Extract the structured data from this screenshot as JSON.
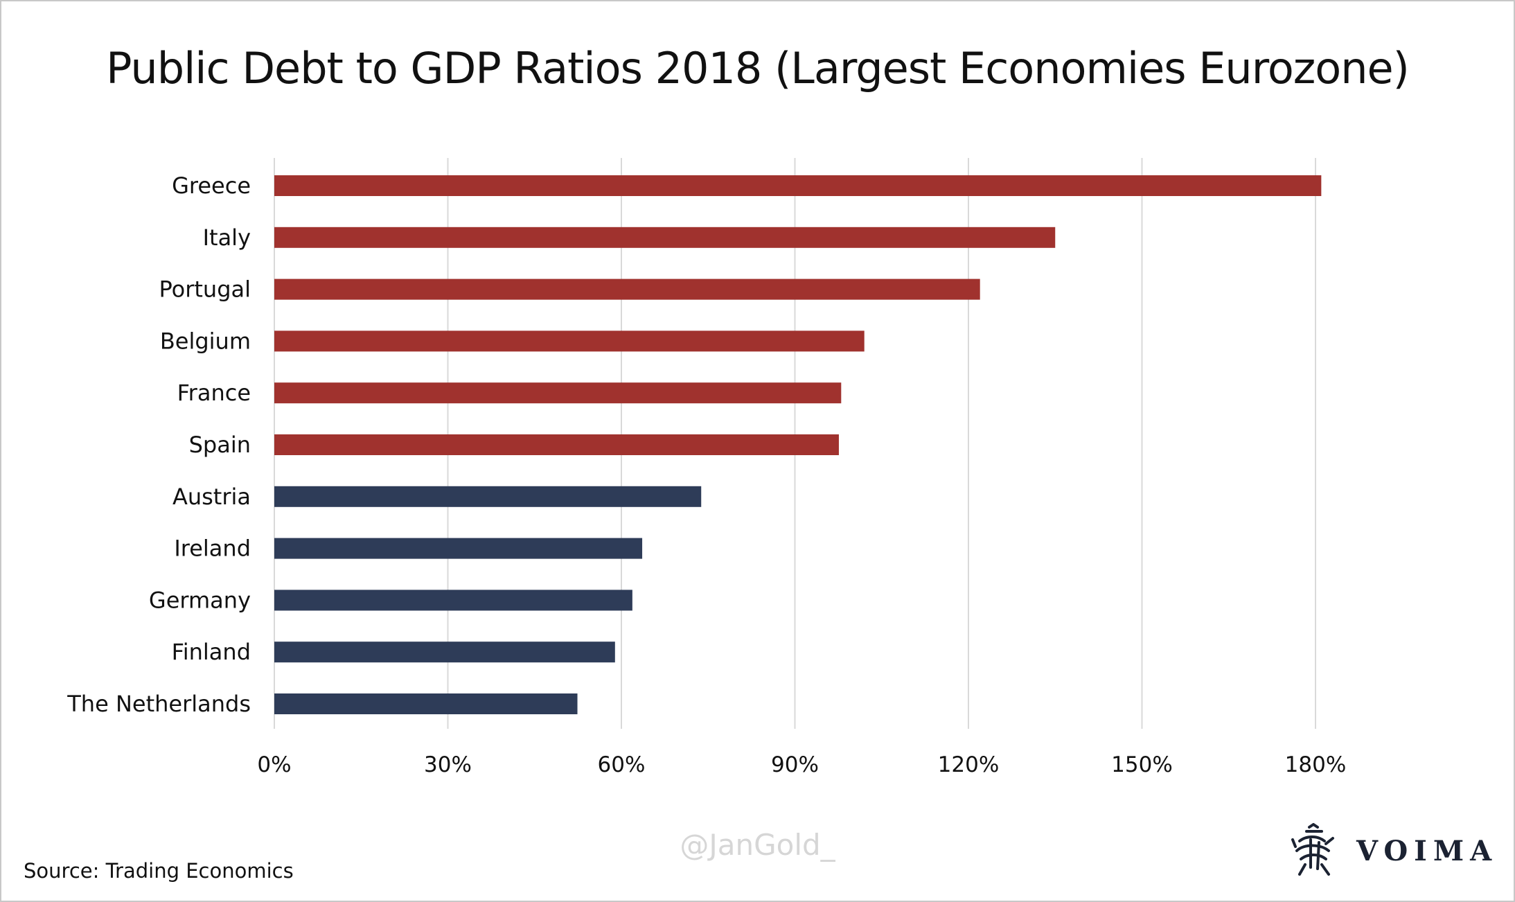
{
  "title": "Public Debt to GDP Ratios 2018 (Largest Economies Eurozone)",
  "source": "Source: Trading Economics",
  "watermark": "@JanGold_",
  "logo": {
    "text": "VOIMA",
    "icon": "griffin-crest-icon"
  },
  "colors": {
    "above_60": "#a0322e",
    "below_60": "#2e3c58",
    "grid": "#d9d9d9"
  },
  "chart_data": {
    "type": "bar",
    "orientation": "horizontal",
    "title": "Public Debt to GDP Ratios 2018 (Largest Economies Eurozone)",
    "categories": [
      "Greece",
      "Italy",
      "Portugal",
      "Belgium",
      "France",
      "Spain",
      "Austria",
      "Ireland",
      "Germany",
      "Finland",
      "The Netherlands"
    ],
    "values": [
      181,
      135,
      122,
      102,
      98,
      97.6,
      73.8,
      63.6,
      61.9,
      58.9,
      52.4
    ],
    "value_unit": "%",
    "bar_colors": [
      "#a0322e",
      "#a0322e",
      "#a0322e",
      "#a0322e",
      "#a0322e",
      "#a0322e",
      "#2e3c58",
      "#2e3c58",
      "#2e3c58",
      "#2e3c58",
      "#2e3c58"
    ],
    "xlim": [
      0,
      195
    ],
    "xticks": [
      0,
      30,
      60,
      90,
      120,
      150,
      180
    ],
    "xtick_labels": [
      "0%",
      "30%",
      "60%",
      "90%",
      "120%",
      "150%",
      "180%"
    ],
    "xlabel": "",
    "ylabel": "",
    "grid": "vertical",
    "legend": "none"
  }
}
